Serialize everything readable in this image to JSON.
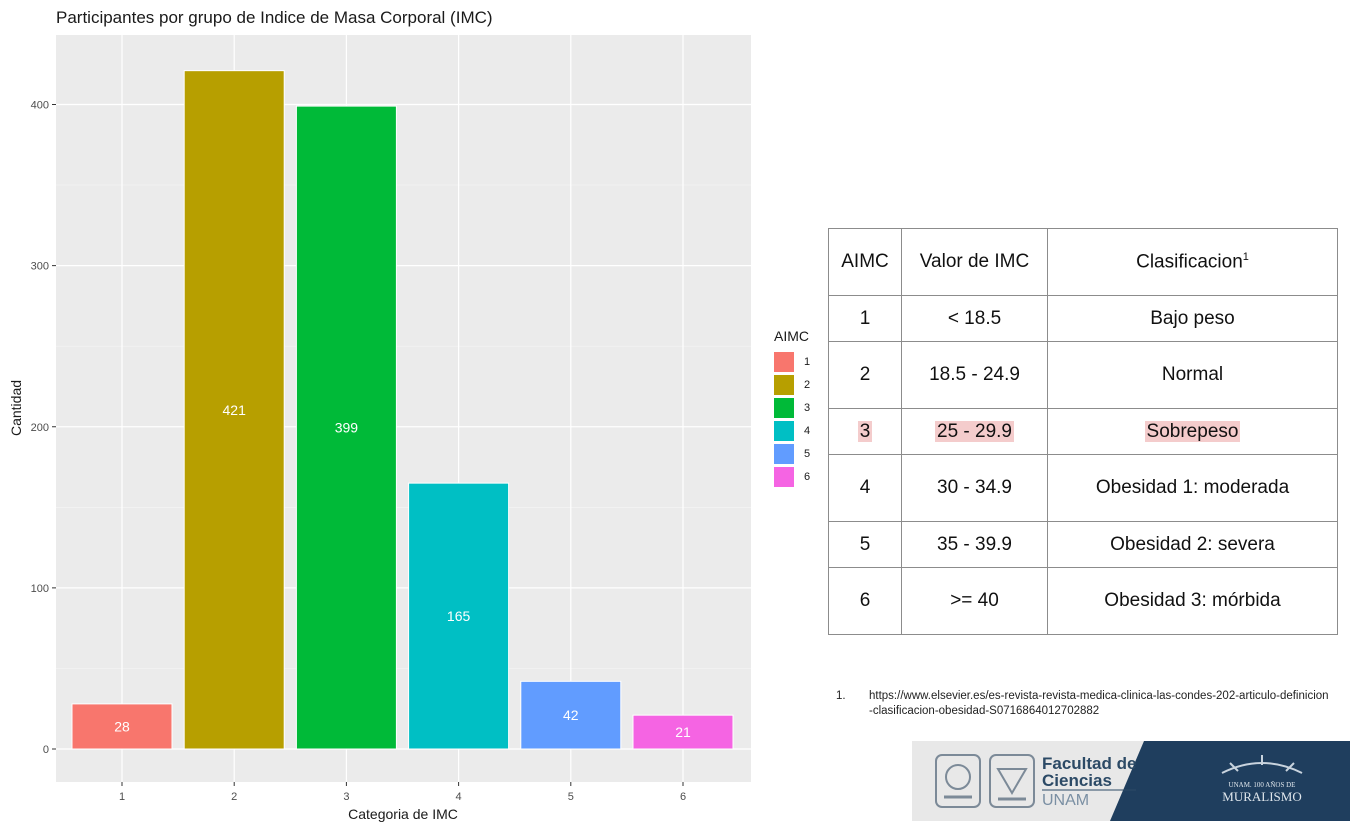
{
  "chart_data": {
    "type": "bar",
    "title": "Participantes por grupo de Indice de Masa Corporal (IMC)",
    "xlabel": "Categoria de IMC",
    "ylabel": "Cantidad",
    "categories": [
      "1",
      "2",
      "3",
      "4",
      "5",
      "6"
    ],
    "values": [
      28,
      421,
      399,
      165,
      42,
      21
    ],
    "ylim": [
      0,
      443
    ],
    "yticks": [
      "0",
      "100",
      "200",
      "300",
      "400"
    ],
    "colors": [
      "#F8766D",
      "#B79F00",
      "#00BA38",
      "#00BFC4",
      "#619CFF",
      "#F564E3"
    ],
    "grid": true,
    "legend": {
      "title": "AIMC",
      "position": "right",
      "labels": [
        "1",
        "2",
        "3",
        "4",
        "5",
        "6"
      ]
    }
  },
  "table": {
    "headers": [
      "AIMC",
      "Valor de IMC",
      "Clasificacion",
      "1"
    ],
    "rows": [
      {
        "aimc": "1",
        "valor": "< 18.5",
        "clasificacion": "Bajo peso"
      },
      {
        "aimc": "2",
        "valor": "18.5 - 24.9",
        "clasificacion": "Normal"
      },
      {
        "aimc": "3",
        "valor": "25 - 29.9",
        "clasificacion": "Sobrepeso"
      },
      {
        "aimc": "4",
        "valor": "30 - 34.9",
        "clasificacion": "Obesidad 1: moderada"
      },
      {
        "aimc": "5",
        "valor": "35 - 39.9",
        "clasificacion": "Obesidad 2: severa"
      },
      {
        "aimc": "6",
        "valor": ">= 40",
        "clasificacion": "Obesidad 3: mórbida"
      }
    ],
    "highlight_color": "#F4CCCC"
  },
  "footnote": {
    "number": "1.",
    "text": "https://www.elsevier.es/es-revista-revista-medica-clinica-las-condes-202-articulo-definicion-clasificacion-obesidad-S0716864012702882"
  },
  "banner": {
    "line1": "Facultad de",
    "line2": "Ciencias",
    "line3": "UNAM",
    "right_line1": "UNAM. 100 AÑOS DE",
    "right_line2": "MURALISMO"
  }
}
